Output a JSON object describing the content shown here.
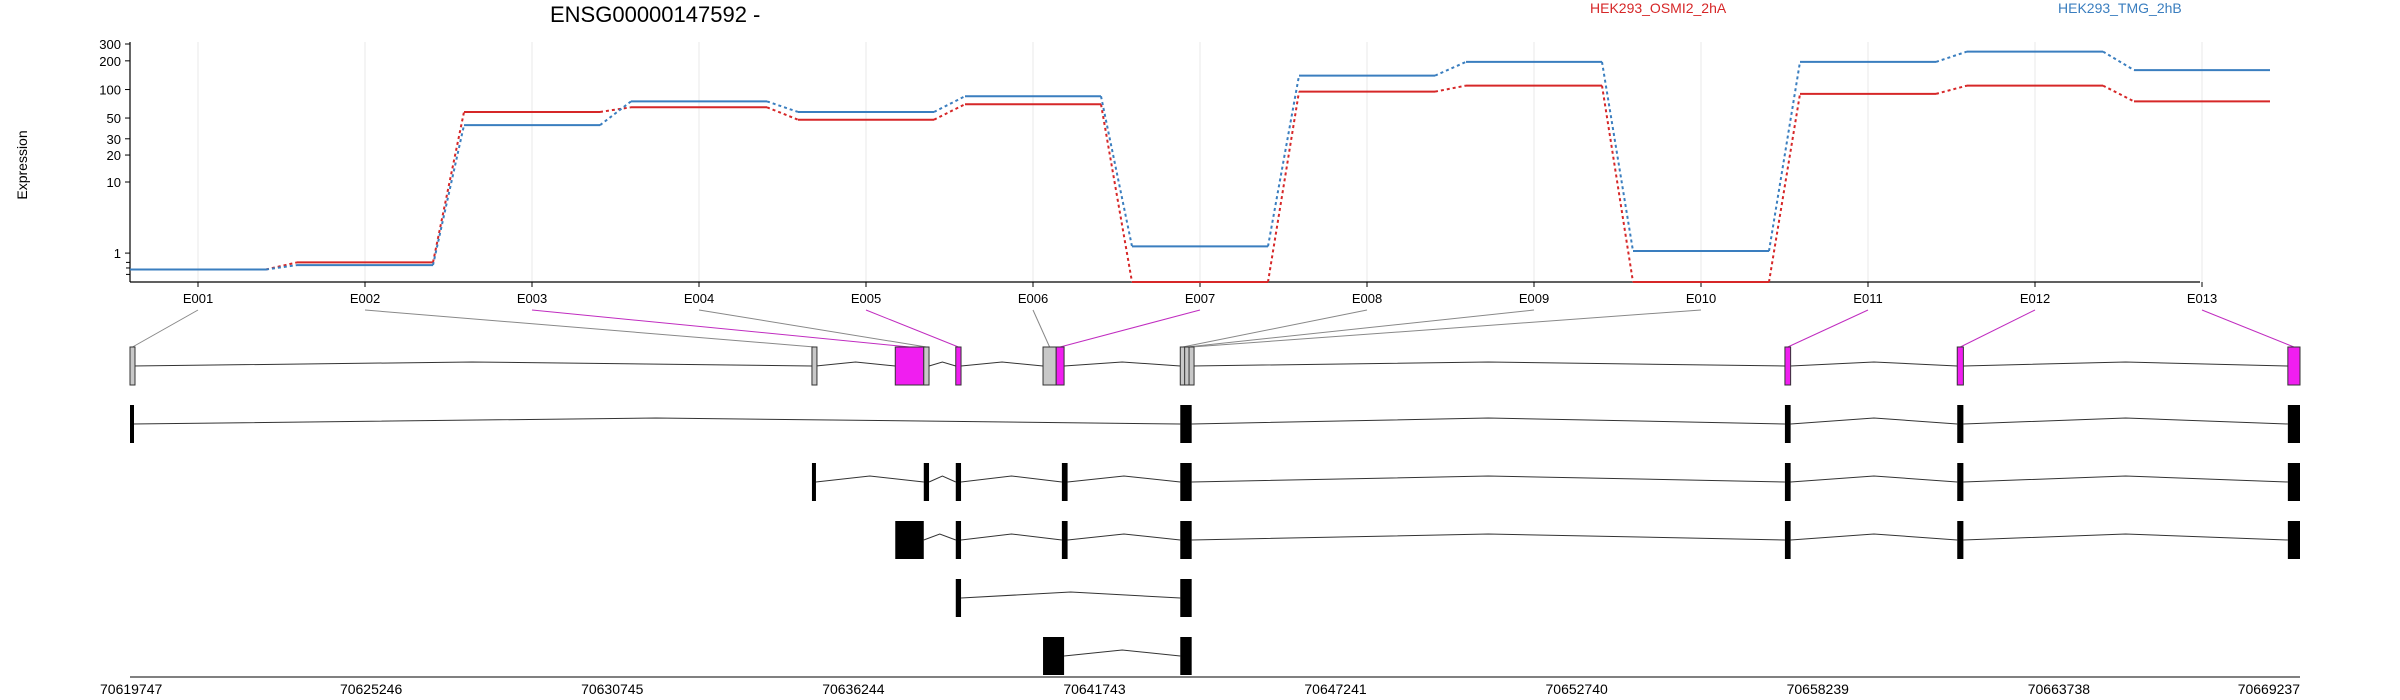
{
  "chart_data": {
    "type": "line",
    "title": "ENSG00000147592 -",
    "ylabel": "Expression",
    "xlabel": "",
    "y_scale": "log(1+y)",
    "ylim": [
      0,
      300
    ],
    "y_ticks": [
      1,
      10,
      20,
      30,
      50,
      100,
      200,
      300
    ],
    "grid": "vertical",
    "legend_placement": "top",
    "categories": [
      "E001",
      "E002",
      "E003",
      "E004",
      "E005",
      "E006",
      "E007",
      "E008",
      "E009",
      "E010",
      "E011",
      "E012",
      "E013"
    ],
    "series": [
      {
        "name": "HEK293_OSMI2_2hA",
        "color": "#d62728",
        "values": [
          0.35,
          0.6,
          58,
          65,
          48,
          70,
          0,
          95,
          110,
          0,
          90,
          110,
          75
        ]
      },
      {
        "name": "HEK293_TMG_2hB",
        "color": "#3a7ebf",
        "values": [
          0.35,
          0.5,
          42,
          75,
          58,
          85,
          1.35,
          140,
          195,
          1.1,
          195,
          250,
          160
        ]
      }
    ],
    "genomic_coordinates": [
      "70619747",
      "70625246",
      "70630745",
      "70636244",
      "70641743",
      "70647241",
      "70652740",
      "70658239",
      "70663738",
      "70669237"
    ],
    "gene_model": {
      "gene_start": 70619747,
      "gene_end": 70669237,
      "exon_bins": [
        {
          "id": "E001",
          "start": 70619747,
          "end": 70619790,
          "state": "unchanged"
        },
        {
          "id": "E002",
          "start": 70635300,
          "end": 70635390,
          "state": "unchanged"
        },
        {
          "id": "E003",
          "start": 70637200,
          "end": 70637850,
          "state": "significant"
        },
        {
          "id": "E004",
          "start": 70637850,
          "end": 70637970,
          "state": "unchanged"
        },
        {
          "id": "E005",
          "start": 70638580,
          "end": 70638700,
          "state": "significant"
        },
        {
          "id": "E006",
          "start": 70640570,
          "end": 70640870,
          "state": "unchanged"
        },
        {
          "id": "E007",
          "start": 70640870,
          "end": 70641050,
          "state": "significant"
        },
        {
          "id": "E008",
          "start": 70643700,
          "end": 70643800,
          "state": "unchanged"
        },
        {
          "id": "E009",
          "start": 70643800,
          "end": 70643900,
          "state": "unchanged"
        },
        {
          "id": "E010",
          "start": 70643900,
          "end": 70643960,
          "state": "unchanged"
        },
        {
          "id": "E011",
          "start": 70657490,
          "end": 70657620,
          "state": "significant"
        },
        {
          "id": "E012",
          "start": 70661420,
          "end": 70661560,
          "state": "significant"
        },
        {
          "id": "E013",
          "start": 70668960,
          "end": 70669237,
          "state": "significant"
        }
      ],
      "significant_color": "#f01ef0",
      "unchanged_color": "#c8c8c8",
      "transcripts": [
        [
          [
            70619747,
            70619790
          ],
          [
            70643700,
            70643960
          ],
          [
            70657490,
            70657620
          ],
          [
            70661420,
            70661560
          ],
          [
            70668960,
            70669237
          ]
        ],
        [
          [
            70635300,
            70635390
          ],
          [
            70637850,
            70637970
          ],
          [
            70638580,
            70638700
          ],
          [
            70641000,
            70641130
          ],
          [
            70643700,
            70643960
          ],
          [
            70657490,
            70657620
          ],
          [
            70661420,
            70661560
          ],
          [
            70668960,
            70669237
          ]
        ],
        [
          [
            70637200,
            70637850
          ],
          [
            70638580,
            70638700
          ],
          [
            70641000,
            70641130
          ],
          [
            70643700,
            70643960
          ],
          [
            70657490,
            70657620
          ],
          [
            70661420,
            70661560
          ],
          [
            70668960,
            70669237
          ]
        ],
        [
          [
            70638580,
            70638700
          ],
          [
            70643700,
            70643960
          ]
        ],
        [
          [
            70640570,
            70641050
          ],
          [
            70643700,
            70643960
          ]
        ]
      ]
    }
  }
}
